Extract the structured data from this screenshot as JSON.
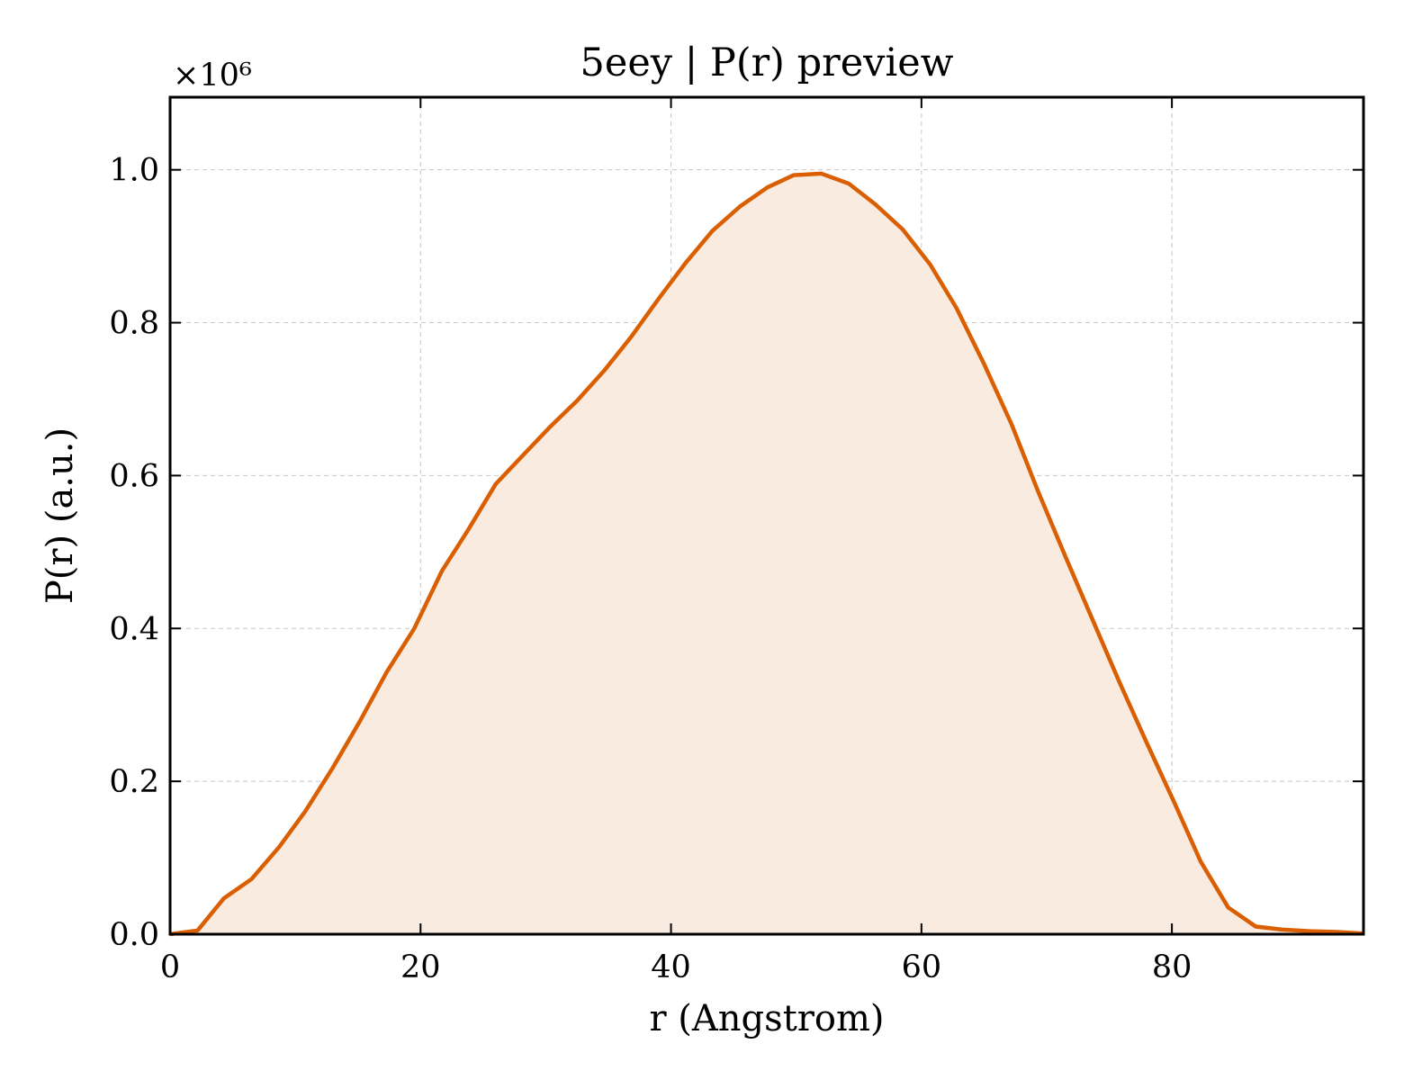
{
  "chart_data": {
    "type": "area",
    "title": "5eey | P(r) preview",
    "xlabel": "r (Angstrom)",
    "ylabel": "P(r) (a.u.)",
    "y_offset_label": "×10⁶",
    "xlim": [
      0,
      95.3
    ],
    "ylim": [
      0,
      1.095
    ],
    "xticks": [
      0,
      20,
      40,
      60,
      80
    ],
    "xtick_labels": [
      "0",
      "20",
      "40",
      "60",
      "80"
    ],
    "yticks": [
      0.0,
      0.2,
      0.4,
      0.6,
      0.8,
      1.0
    ],
    "ytick_labels": [
      "0.0",
      "0.2",
      "0.4",
      "0.6",
      "0.8",
      "1.0"
    ],
    "grid": true,
    "line_color": "#d95f02",
    "fill_color": "#f9ebe0",
    "series": [
      {
        "x": [
          0,
          2.2,
          4.3,
          6.5,
          8.7,
          10.8,
          13.0,
          15.2,
          17.3,
          19.5,
          21.7,
          23.8,
          26.0,
          28.2,
          30.3,
          32.5,
          34.7,
          36.8,
          39.0,
          41.2,
          43.3,
          45.5,
          47.7,
          49.8,
          52.0,
          54.2,
          56.3,
          58.5,
          60.7,
          62.8,
          65.0,
          67.2,
          69.3,
          71.5,
          73.7,
          75.8,
          78.0,
          80.2,
          82.3,
          84.5,
          86.7,
          88.8,
          91.0,
          93.2,
          95.3
        ],
        "y": [
          0.0,
          0.005,
          0.047,
          0.072,
          0.114,
          0.161,
          0.218,
          0.28,
          0.343,
          0.4,
          0.475,
          0.529,
          0.589,
          0.627,
          0.663,
          0.698,
          0.738,
          0.781,
          0.831,
          0.879,
          0.92,
          0.952,
          0.977,
          0.993,
          0.995,
          0.982,
          0.955,
          0.922,
          0.876,
          0.819,
          0.746,
          0.667,
          0.58,
          0.494,
          0.41,
          0.33,
          0.25,
          0.172,
          0.095,
          0.035,
          0.01,
          0.006,
          0.004,
          0.003,
          0.001
        ]
      }
    ]
  }
}
